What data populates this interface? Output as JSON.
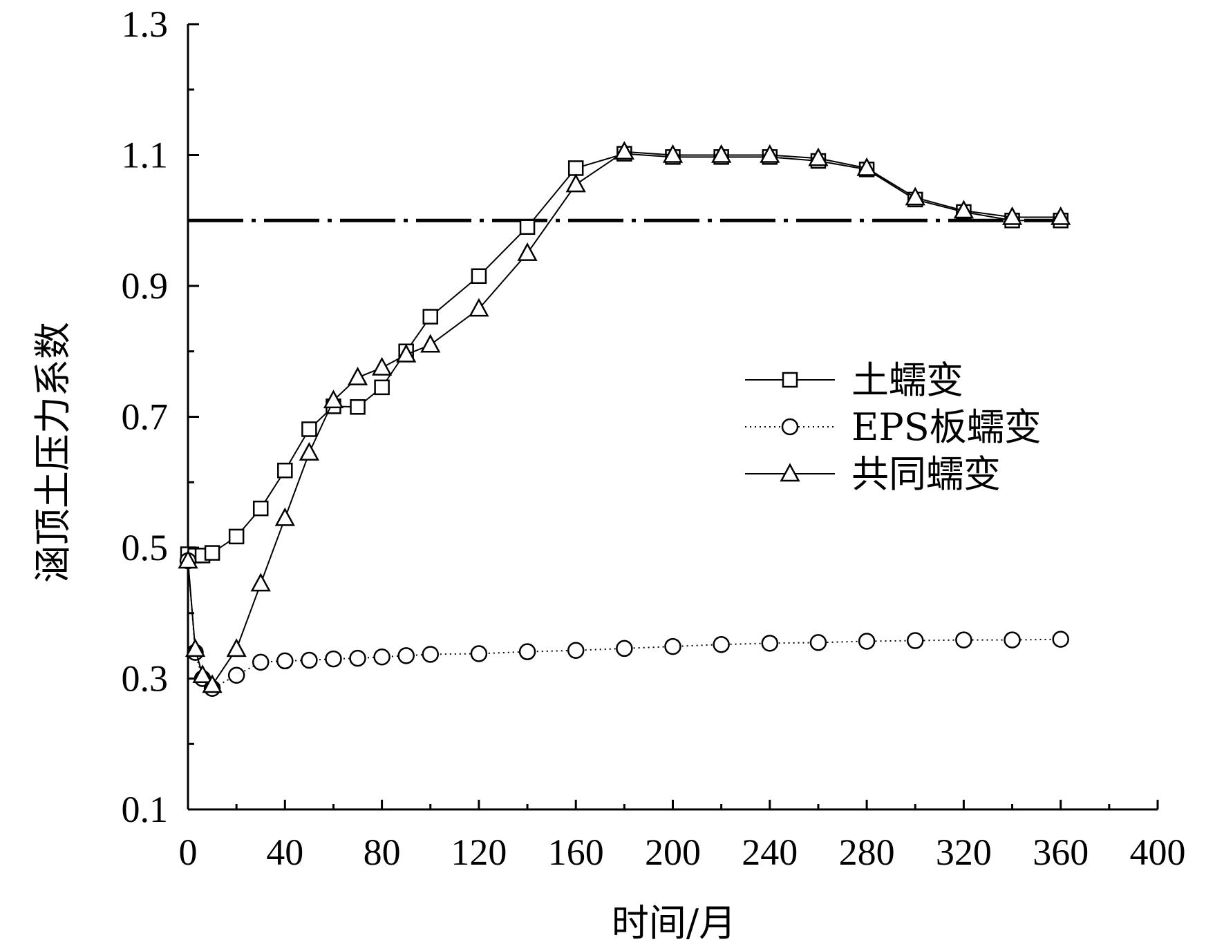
{
  "chart_data": {
    "type": "line",
    "xlabel": "时间/月",
    "ylabel": "涵顶土压力系数",
    "xlim": [
      0,
      400
    ],
    "ylim": [
      0.1,
      1.3
    ],
    "xticks": [
      0,
      40,
      80,
      120,
      160,
      200,
      240,
      280,
      320,
      360,
      400
    ],
    "yticks": [
      0.1,
      0.3,
      0.5,
      0.7,
      0.9,
      1.1,
      1.3
    ],
    "ytick_labels": [
      "0.1",
      "0.3",
      "0.5",
      "0.7",
      "0.9",
      "1.1",
      "1.3"
    ],
    "grid": false,
    "legend_position": "right-middle",
    "reference_line": {
      "y": 1.0,
      "style": "dash-dot",
      "x_range": [
        0,
        360
      ]
    },
    "series": [
      {
        "name": "土蠕变",
        "marker": "square",
        "line_style": "solid",
        "x": [
          0,
          3,
          6,
          10,
          20,
          30,
          40,
          50,
          60,
          70,
          80,
          90,
          100,
          120,
          140,
          160,
          180,
          200,
          220,
          240,
          260,
          280,
          300,
          320,
          340,
          360
        ],
        "y": [
          0.49,
          0.488,
          0.488,
          0.492,
          0.517,
          0.56,
          0.618,
          0.681,
          0.716,
          0.715,
          0.745,
          0.8,
          0.853,
          0.915,
          0.99,
          1.08,
          1.102,
          1.097,
          1.097,
          1.097,
          1.091,
          1.078,
          1.032,
          1.013,
          1.0,
          1.0
        ]
      },
      {
        "name": "EPS板蠕变",
        "marker": "circle",
        "line_style": "dotted",
        "x": [
          0,
          3,
          6,
          10,
          20,
          30,
          40,
          50,
          60,
          70,
          80,
          90,
          100,
          120,
          140,
          160,
          180,
          200,
          220,
          240,
          260,
          280,
          300,
          320,
          340,
          360
        ],
        "y": [
          0.48,
          0.34,
          0.3,
          0.285,
          0.305,
          0.325,
          0.327,
          0.328,
          0.33,
          0.331,
          0.333,
          0.335,
          0.337,
          0.338,
          0.341,
          0.343,
          0.346,
          0.349,
          0.352,
          0.354,
          0.355,
          0.357,
          0.358,
          0.359,
          0.359,
          0.36
        ]
      },
      {
        "name": "共同蠕变",
        "marker": "triangle",
        "line_style": "solid",
        "x": [
          0,
          3,
          6,
          10,
          20,
          30,
          40,
          50,
          60,
          70,
          80,
          90,
          100,
          120,
          140,
          160,
          180,
          200,
          220,
          240,
          260,
          280,
          300,
          320,
          340,
          360
        ],
        "y": [
          0.48,
          0.345,
          0.305,
          0.29,
          0.345,
          0.445,
          0.545,
          0.645,
          0.725,
          0.76,
          0.775,
          0.795,
          0.81,
          0.865,
          0.95,
          1.055,
          1.105,
          1.1,
          1.1,
          1.1,
          1.095,
          1.08,
          1.035,
          1.015,
          1.005,
          1.005
        ]
      }
    ]
  }
}
